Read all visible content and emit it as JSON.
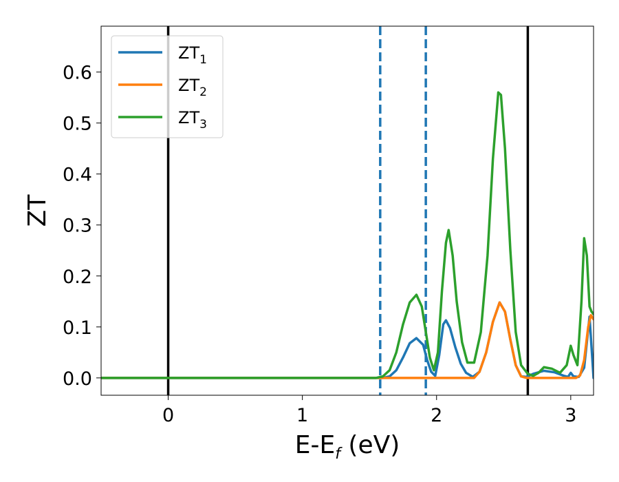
{
  "chart_data": {
    "type": "line",
    "title": "",
    "xlabel": "E-E",
    "xlabel_sub": "f",
    "xlabel_unit": " (eV)",
    "ylabel": "ZT",
    "xlim": [
      -0.5,
      3.17
    ],
    "ylim": [
      -0.034,
      0.69
    ],
    "xticks": [
      0,
      1,
      2,
      3
    ],
    "yticks": [
      0.0,
      0.1,
      0.2,
      0.3,
      0.4,
      0.5,
      0.6
    ],
    "xtick_labels": [
      "0",
      "1",
      "2",
      "3"
    ],
    "ytick_labels": [
      "0.0",
      "0.1",
      "0.2",
      "0.3",
      "0.4",
      "0.5",
      "0.6"
    ],
    "grid": false,
    "legend_position": "upper-left",
    "vertical_lines": [
      {
        "x": 0.0,
        "style": "solid",
        "color": "#000000"
      },
      {
        "x": 2.68,
        "style": "solid",
        "color": "#000000"
      },
      {
        "x": 1.58,
        "style": "dashed",
        "color": "#1f77b4"
      },
      {
        "x": 1.92,
        "style": "dashed",
        "color": "#1f77b4"
      }
    ],
    "series": [
      {
        "name": "ZT",
        "sub": "1",
        "color": "#1f77b4",
        "points": [
          [
            -0.5,
            0
          ],
          [
            1.55,
            0
          ],
          [
            1.6,
            0.0
          ],
          [
            1.65,
            0.003
          ],
          [
            1.7,
            0.015
          ],
          [
            1.75,
            0.04
          ],
          [
            1.8,
            0.068
          ],
          [
            1.85,
            0.078
          ],
          [
            1.9,
            0.065
          ],
          [
            1.93,
            0.035
          ],
          [
            1.96,
            0.012
          ],
          [
            1.99,
            0.004
          ],
          [
            2.02,
            0.045
          ],
          [
            2.05,
            0.105
          ],
          [
            2.07,
            0.113
          ],
          [
            2.1,
            0.098
          ],
          [
            2.14,
            0.06
          ],
          [
            2.18,
            0.028
          ],
          [
            2.22,
            0.01
          ],
          [
            2.27,
            0.002
          ],
          [
            2.32,
            0.012
          ],
          [
            2.37,
            0.05
          ],
          [
            2.42,
            0.11
          ],
          [
            2.47,
            0.148
          ],
          [
            2.51,
            0.13
          ],
          [
            2.55,
            0.075
          ],
          [
            2.59,
            0.025
          ],
          [
            2.63,
            0.003
          ],
          [
            2.67,
            0.002
          ],
          [
            2.72,
            0.008
          ],
          [
            2.8,
            0.014
          ],
          [
            2.88,
            0.011
          ],
          [
            2.95,
            0.004
          ],
          [
            2.98,
            0.002
          ],
          [
            3.0,
            0.01
          ],
          [
            3.02,
            0.003
          ],
          [
            3.06,
            0.002
          ],
          [
            3.1,
            0.02
          ],
          [
            3.14,
            0.12
          ],
          [
            3.155,
            0.06
          ],
          [
            3.17,
            0.0
          ]
        ]
      },
      {
        "name": "ZT",
        "sub": "2",
        "color": "#ff7f0e",
        "points": [
          [
            -0.5,
            0
          ],
          [
            2.28,
            0
          ],
          [
            2.32,
            0.012
          ],
          [
            2.37,
            0.05
          ],
          [
            2.42,
            0.11
          ],
          [
            2.47,
            0.148
          ],
          [
            2.51,
            0.13
          ],
          [
            2.55,
            0.075
          ],
          [
            2.59,
            0.025
          ],
          [
            2.63,
            0.003
          ],
          [
            2.67,
            0.0
          ],
          [
            3.04,
            0.0
          ],
          [
            3.07,
            0.005
          ],
          [
            3.1,
            0.035
          ],
          [
            3.13,
            0.1
          ],
          [
            3.15,
            0.123
          ],
          [
            3.17,
            0.115
          ]
        ]
      },
      {
        "name": "ZT",
        "sub": "3",
        "color": "#2ca02c",
        "points": [
          [
            -0.5,
            0
          ],
          [
            1.55,
            0
          ],
          [
            1.6,
            0.003
          ],
          [
            1.65,
            0.015
          ],
          [
            1.7,
            0.05
          ],
          [
            1.75,
            0.105
          ],
          [
            1.8,
            0.148
          ],
          [
            1.85,
            0.163
          ],
          [
            1.89,
            0.14
          ],
          [
            1.92,
            0.09
          ],
          [
            1.95,
            0.04
          ],
          [
            1.98,
            0.015
          ],
          [
            2.01,
            0.05
          ],
          [
            2.04,
            0.17
          ],
          [
            2.07,
            0.265
          ],
          [
            2.09,
            0.29
          ],
          [
            2.12,
            0.24
          ],
          [
            2.15,
            0.15
          ],
          [
            2.19,
            0.07
          ],
          [
            2.23,
            0.03
          ],
          [
            2.28,
            0.03
          ],
          [
            2.33,
            0.09
          ],
          [
            2.38,
            0.24
          ],
          [
            2.42,
            0.43
          ],
          [
            2.46,
            0.56
          ],
          [
            2.48,
            0.555
          ],
          [
            2.51,
            0.45
          ],
          [
            2.55,
            0.25
          ],
          [
            2.59,
            0.09
          ],
          [
            2.63,
            0.025
          ],
          [
            2.68,
            0.008
          ],
          [
            2.72,
            0.004
          ],
          [
            2.76,
            0.01
          ],
          [
            2.8,
            0.021
          ],
          [
            2.86,
            0.018
          ],
          [
            2.92,
            0.01
          ],
          [
            2.97,
            0.025
          ],
          [
            3.0,
            0.063
          ],
          [
            3.02,
            0.045
          ],
          [
            3.05,
            0.025
          ],
          [
            3.08,
            0.15
          ],
          [
            3.1,
            0.274
          ],
          [
            3.12,
            0.24
          ],
          [
            3.14,
            0.14
          ],
          [
            3.155,
            0.13
          ],
          [
            3.17,
            0.125
          ]
        ]
      }
    ]
  }
}
